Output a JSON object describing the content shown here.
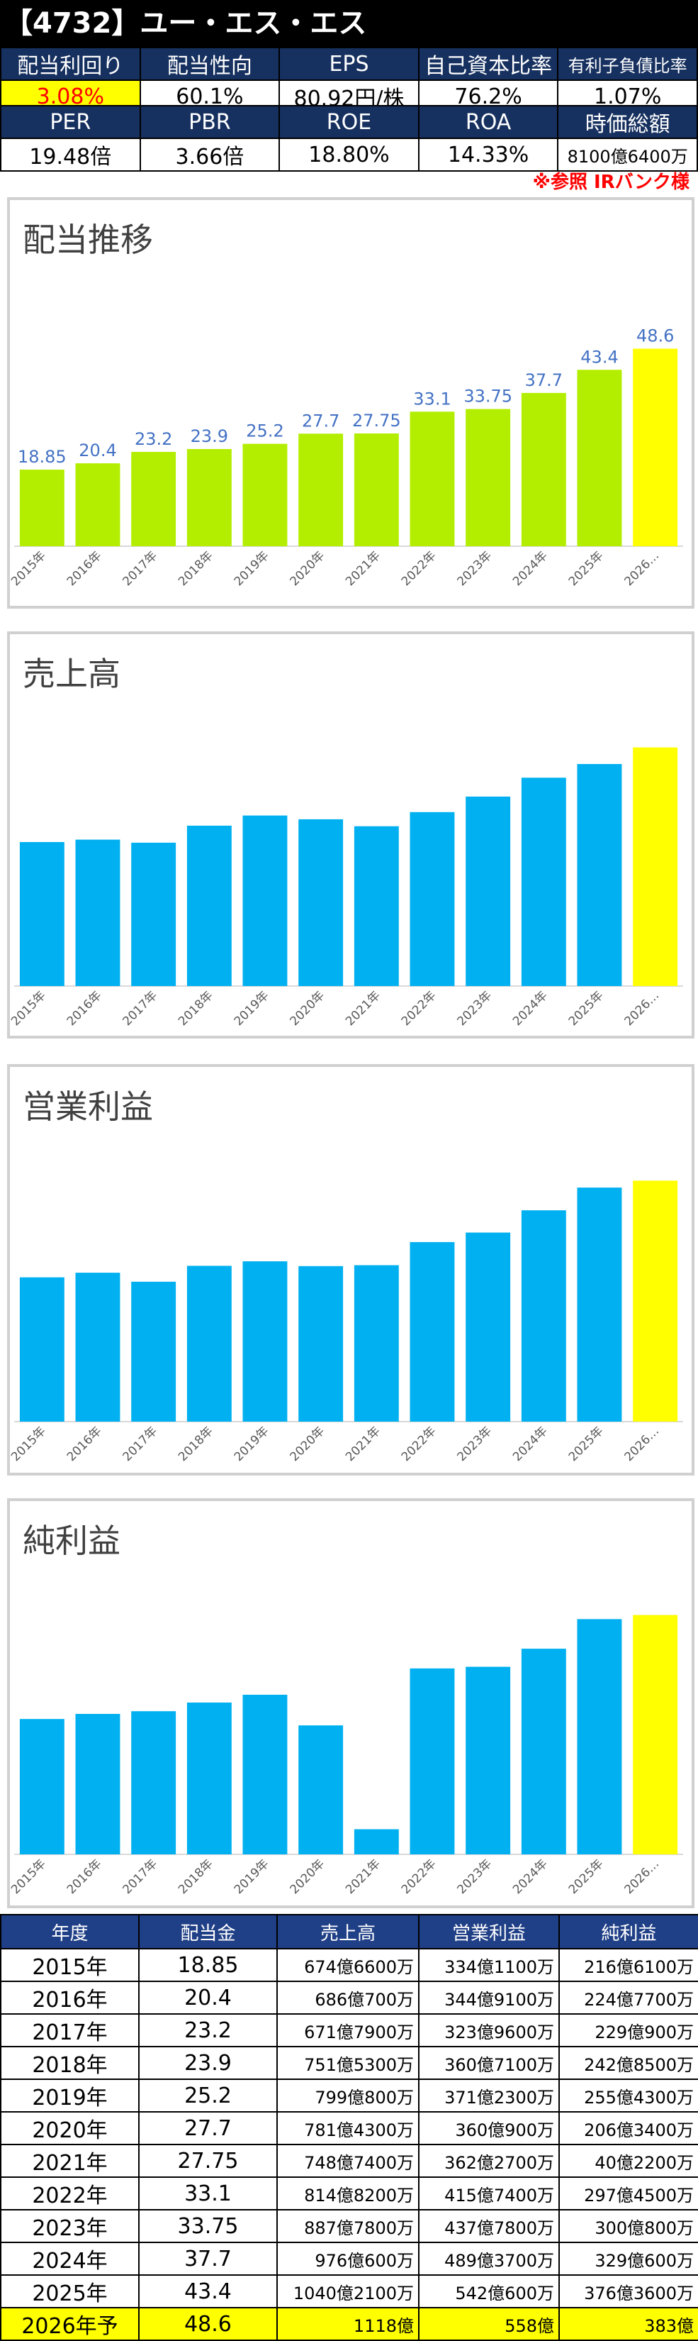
{
  "page_title": "【4732】ユー・エス・エス",
  "metrics_row1": {
    "headers": [
      "配当利回り",
      "配当性向",
      "EPS",
      "自己資本比率",
      "有利子負債比率"
    ],
    "values": [
      "3.08%",
      "60.1%",
      "80.92円/株",
      "76.2%",
      "1.07%"
    ]
  },
  "metrics_row2": {
    "headers": [
      "PER",
      "PBR",
      "ROE",
      "ROA",
      "時価総額"
    ],
    "values": [
      "19.48倍",
      "3.66倍",
      "18.80%",
      "14.33%",
      "8100億6400万"
    ]
  },
  "source_note": "※参照 IRバンク様",
  "colors": {
    "dividend_bar": "#b3ee00",
    "financial_bar": "#00b0f0",
    "forecast_bar": "#ffff00",
    "data_label": "#4472c4"
  },
  "chart_data": [
    {
      "type": "bar",
      "title": "配当推移",
      "categories": [
        "2015年",
        "2016年",
        "2017年",
        "2018年",
        "2019年",
        "2020年",
        "2021年",
        "2022年",
        "2023年",
        "2024年",
        "2025年",
        "2026…"
      ],
      "values": [
        18.85,
        20.4,
        23.2,
        23.9,
        25.2,
        27.7,
        27.75,
        33.1,
        33.75,
        37.7,
        43.4,
        48.6
      ],
      "value_labels": [
        "18.85",
        "20.4",
        "23.2",
        "23.9",
        "25.2",
        "27.7",
        "27.75",
        "33.1",
        "33.75",
        "37.7",
        "43.4",
        "48.6"
      ],
      "ylim": [
        0,
        52
      ]
    },
    {
      "type": "bar",
      "title": "売上高",
      "categories": [
        "2015年",
        "2016年",
        "2017年",
        "2018年",
        "2019年",
        "2020年",
        "2021年",
        "2022年",
        "2023年",
        "2024年",
        "2025年",
        "2026…"
      ],
      "values": [
        674.66,
        686.07,
        671.79,
        751.53,
        799.08,
        781.43,
        748.74,
        814.82,
        887.78,
        976.06,
        1040.21,
        1118
      ],
      "ylim": [
        0,
        1150
      ]
    },
    {
      "type": "bar",
      "title": "営業利益",
      "categories": [
        "2015年",
        "2016年",
        "2017年",
        "2018年",
        "2019年",
        "2020年",
        "2021年",
        "2022年",
        "2023年",
        "2024年",
        "2025年",
        "2026…"
      ],
      "values": [
        334.11,
        344.91,
        323.96,
        360.71,
        371.23,
        360.09,
        362.27,
        415.74,
        437.78,
        489.37,
        542.06,
        558
      ],
      "ylim": [
        0,
        575
      ]
    },
    {
      "type": "bar",
      "title": "純利益",
      "categories": [
        "2015年",
        "2016年",
        "2017年",
        "2018年",
        "2019年",
        "2020年",
        "2021年",
        "2022年",
        "2023年",
        "2024年",
        "2025年",
        "2026…"
      ],
      "values": [
        216.61,
        224.77,
        229.09,
        242.85,
        255.43,
        206.34,
        40.22,
        297.45,
        300.08,
        329.06,
        376.36,
        383
      ],
      "ylim": [
        0,
        395
      ]
    }
  ],
  "data_table": {
    "headers": [
      "年度",
      "配当金",
      "売上高",
      "営業利益",
      "純利益"
    ],
    "rows": [
      [
        "2015年",
        "18.85",
        "674億6600万",
        "334億1100万",
        "216億6100万"
      ],
      [
        "2016年",
        "20.4",
        "686億700万",
        "344億9100万",
        "224億7700万"
      ],
      [
        "2017年",
        "23.2",
        "671億7900万",
        "323億9600万",
        "229億900万"
      ],
      [
        "2018年",
        "23.9",
        "751億5300万",
        "360億7100万",
        "242億8500万"
      ],
      [
        "2019年",
        "25.2",
        "799億800万",
        "371億2300万",
        "255億4300万"
      ],
      [
        "2020年",
        "27.7",
        "781億4300万",
        "360億900万",
        "206億3400万"
      ],
      [
        "2021年",
        "27.75",
        "748億7400万",
        "362億2700万",
        "40億2200万"
      ],
      [
        "2022年",
        "33.1",
        "814億8200万",
        "415億7400万",
        "297億4500万"
      ],
      [
        "2023年",
        "33.75",
        "887億7800万",
        "437億7800万",
        "300億800万"
      ],
      [
        "2024年",
        "37.7",
        "976億600万",
        "489億3700万",
        "329億600万"
      ],
      [
        "2025年",
        "43.4",
        "1040億2100万",
        "542億600万",
        "376億3600万"
      ],
      [
        "2026年予",
        "48.6",
        "1118億",
        "558億",
        "383億"
      ]
    ]
  }
}
